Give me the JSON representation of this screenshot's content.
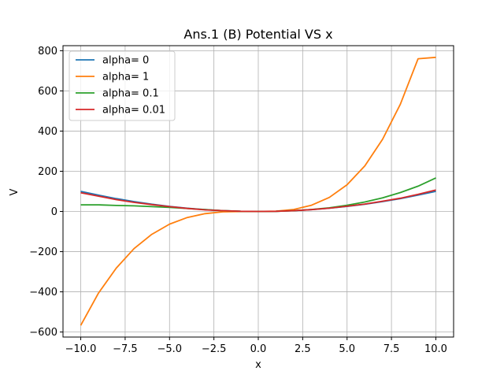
{
  "chart_data": {
    "type": "line",
    "title": "Ans.1 (B) Potential VS x",
    "xlabel": "x",
    "ylabel": "V",
    "xlim": [
      -11,
      11
    ],
    "ylim": [
      -625,
      825
    ],
    "xticks": [
      -10,
      -7.5,
      -5,
      -2.5,
      0,
      2.5,
      5,
      7.5,
      10
    ],
    "xtick_labels": [
      "−10.0",
      "−7.5",
      "−5.0",
      "−2.5",
      "0.0",
      "2.5",
      "5.0",
      "7.5",
      "10.0"
    ],
    "yticks": [
      -600,
      -400,
      -200,
      0,
      200,
      400,
      600,
      800
    ],
    "ytick_labels": [
      "−600",
      "−400",
      "−200",
      "0",
      "200",
      "400",
      "600",
      "800"
    ],
    "grid": true,
    "legend_position": "top-left",
    "x": [
      -10,
      -9,
      -8,
      -7,
      -6,
      -5,
      -4,
      -3,
      -2,
      -1,
      0,
      1,
      2,
      3,
      4,
      5,
      6,
      7,
      8,
      9,
      10
    ],
    "series": [
      {
        "name": "alpha= 0",
        "color": "#1f77b4",
        "values": [
          100,
          81,
          64,
          49,
          36,
          25,
          16,
          9,
          4,
          1,
          0,
          1,
          4,
          9,
          16,
          25,
          36,
          49,
          64,
          81,
          100
        ]
      },
      {
        "name": "alpha= 1",
        "color": "#ff7f0e",
        "values": [
          -567,
          -406,
          -282,
          -185,
          -114,
          -63,
          -30,
          -11,
          -2,
          -0.3,
          0,
          1.7,
          10,
          31,
          70,
          133,
          227,
          359,
          534,
          760,
          767
        ]
      },
      {
        "name": "alpha= 0.1",
        "color": "#2ca02c",
        "values": [
          33,
          33,
          30,
          28,
          24,
          20,
          15,
          9,
          4,
          1,
          0,
          1,
          4,
          10,
          18,
          31,
          47,
          68,
          94,
          126,
          167
        ]
      },
      {
        "name": "alpha= 0.01",
        "color": "#d62728",
        "values": [
          93,
          76,
          59,
          45,
          34,
          24,
          15,
          8,
          4,
          1,
          0,
          1,
          4,
          9,
          16,
          26,
          37,
          51,
          66,
          85,
          107
        ]
      }
    ]
  }
}
